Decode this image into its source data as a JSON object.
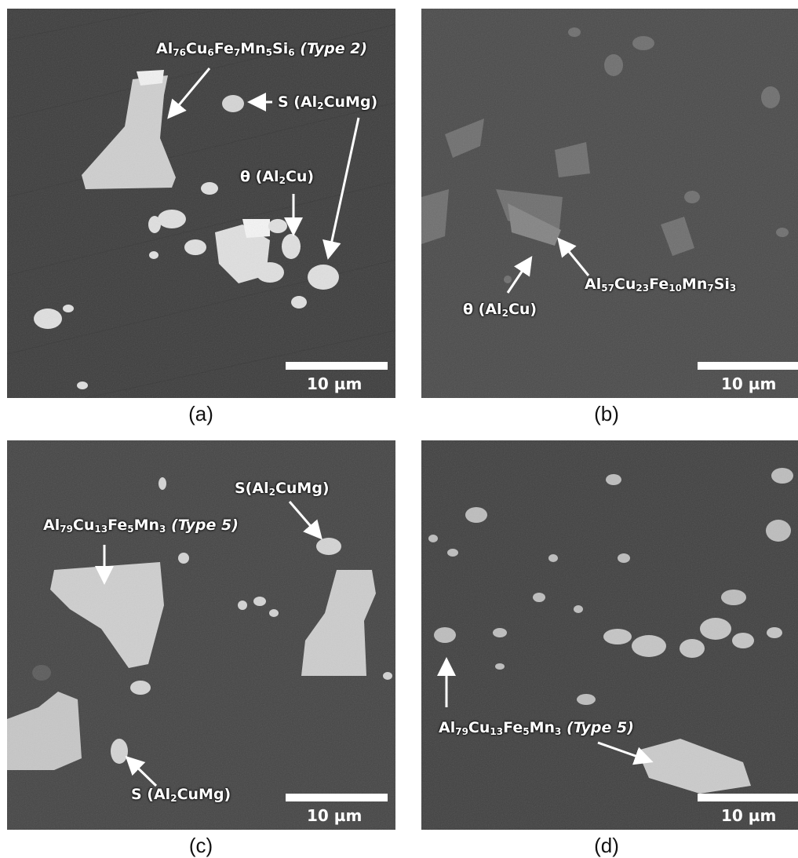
{
  "panels": [
    {
      "caption": "(a)",
      "scale_label": "10 µm",
      "annotations": {
        "type2": {
          "main": "Al",
          "s1": "76",
          "t1": "Cu",
          "s2": "6",
          "t2": "Fe",
          "s3": "7",
          "t3": "Mn",
          "s4": "5",
          "t4": "Si",
          "s5": "6",
          "tail": "(Type 2)"
        },
        "s_phase": {
          "pre": "S (Al",
          "sub": "2",
          "post": "CuMg)"
        },
        "theta": {
          "pre": "θ (Al",
          "sub": "2",
          "post": "Cu)"
        }
      }
    },
    {
      "caption": "(b)",
      "scale_label": "10 µm",
      "annotations": {
        "phase": {
          "main": "Al",
          "s1": "57",
          "t1": "Cu",
          "s2": "23",
          "t2": "Fe",
          "s3": "10",
          "t3": "Mn",
          "s4": "7",
          "t4": "Si",
          "s5": "3"
        },
        "theta": {
          "pre": "θ (Al",
          "sub": "2",
          "post": "Cu)"
        }
      }
    },
    {
      "caption": "(c)",
      "scale_label": "10 µm",
      "annotations": {
        "type5": {
          "main": "Al",
          "s1": "79",
          "t1": "Cu",
          "s2": "13",
          "t2": "Fe",
          "s3": "5",
          "t3": "Mn",
          "s4": "3",
          "tail": "(Type 5)"
        },
        "s_top": {
          "pre": "S(Al",
          "sub": "2",
          "post": "CuMg)"
        },
        "s_bottom": {
          "pre": "S (Al",
          "sub": "2",
          "post": "CuMg)"
        }
      }
    },
    {
      "caption": "(d)",
      "scale_label": "10 µm",
      "annotations": {
        "type5": {
          "main": "Al",
          "s1": "79",
          "t1": "Cu",
          "s2": "13",
          "t2": "Fe",
          "s3": "5",
          "t3": "Mn",
          "s4": "3",
          "tail": "(Type 5)"
        }
      }
    }
  ],
  "colors": {
    "background_a": "#3c3c3c",
    "background_b": "#4a4a4a",
    "background_c": "#444444",
    "background_d": "#404040",
    "particle": "#d9d9d9",
    "annotation": "#ffffff"
  }
}
